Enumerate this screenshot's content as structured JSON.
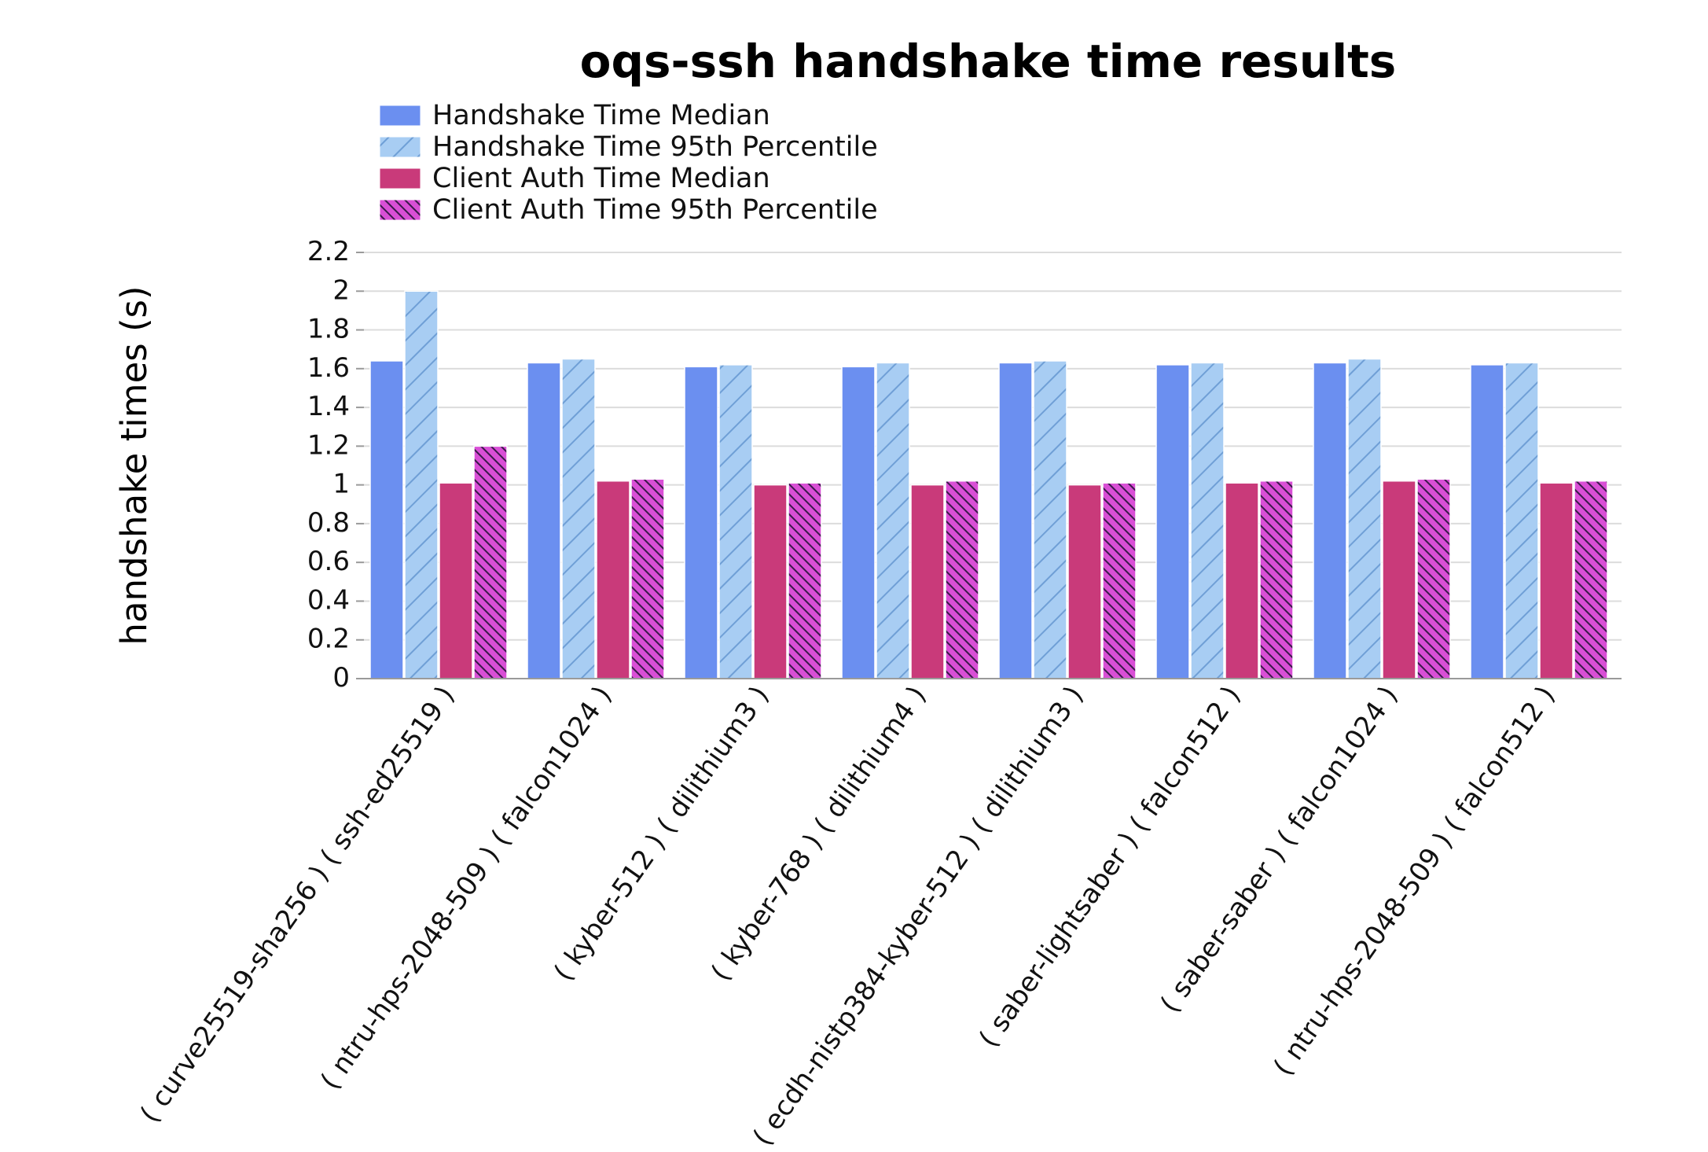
{
  "chart_data": {
    "type": "bar",
    "title": "oqs-ssh handshake time results",
    "ylabel": "handshake times (s)",
    "xlabel": "",
    "ylim": [
      0,
      2.2
    ],
    "yticks": [
      "0",
      "0.2",
      "0.4",
      "0.6",
      "0.8",
      "1",
      "1.2",
      "1.4",
      "1.6",
      "1.8",
      "2",
      "2.2"
    ],
    "grid": true,
    "legend_position": "top-left",
    "categories": [
      "( curve25519-sha256 ) ( ssh-ed25519 )",
      "( ntru-hps-2048-509 ) ( falcon1024 )",
      "( kyber-512 ) ( dilithium3 )",
      "( kyber-768 ) ( dilithium4 )",
      "( ecdh-nistp384-kyber-512 ) ( dilithium3 )",
      "( saber-lightsaber ) ( falcon512 )",
      "( saber-saber ) ( falcon1024 )",
      "( ntru-hps-2048-509 ) ( falcon512 )"
    ],
    "series": [
      {
        "name": "Handshake Time Median",
        "color": "#6b8ff0",
        "pattern": "solid",
        "values": [
          1.64,
          1.63,
          1.61,
          1.61,
          1.63,
          1.62,
          1.63,
          1.62
        ]
      },
      {
        "name": "Handshake Time 95th Percentile",
        "color": "#a8cdf3",
        "pattern": "diagonal-lines",
        "values": [
          2.0,
          1.65,
          1.62,
          1.63,
          1.64,
          1.63,
          1.65,
          1.63
        ]
      },
      {
        "name": "Client Auth Time Median",
        "color": "#c93a7a",
        "pattern": "solid",
        "values": [
          1.01,
          1.02,
          1.0,
          1.0,
          1.0,
          1.01,
          1.02,
          1.01
        ]
      },
      {
        "name": "Client Auth Time 95th Percentile",
        "color": "#d94fd6",
        "pattern": "crosshatch",
        "values": [
          1.2,
          1.03,
          1.01,
          1.02,
          1.01,
          1.02,
          1.03,
          1.02
        ]
      }
    ]
  }
}
